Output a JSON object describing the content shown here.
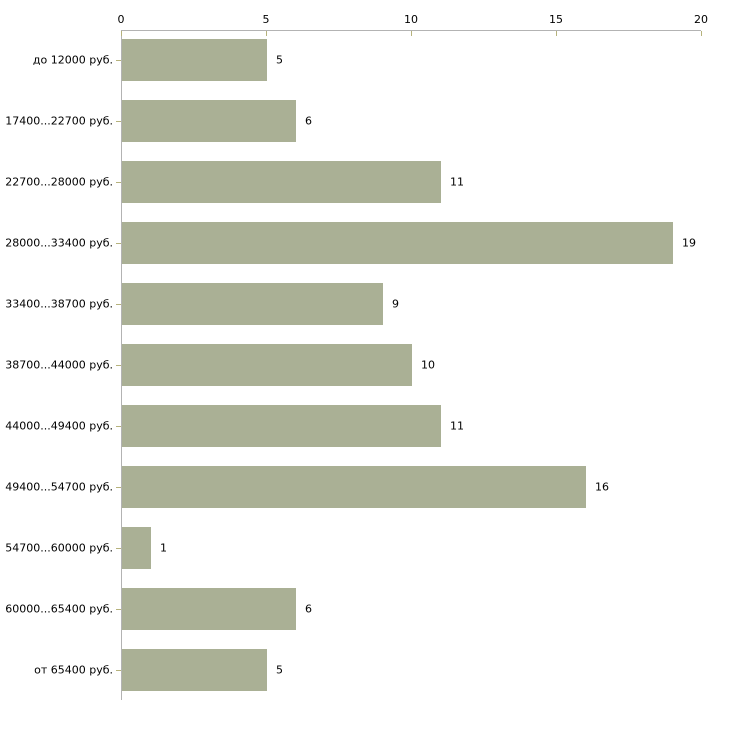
{
  "chart_data": {
    "type": "bar",
    "orientation": "horizontal",
    "title": "",
    "xlabel": "",
    "ylabel": "",
    "categories": [
      "до 12000 руб.",
      "17400...22700 руб.",
      "22700...28000 руб.",
      "28000...33400 руб.",
      "33400...38700 руб.",
      "38700...44000 руб.",
      "44000...49400 руб.",
      "49400...54700 руб.",
      "54700...60000 руб.",
      "60000...65400 руб.",
      "от 65400 руб."
    ],
    "values": [
      5,
      6,
      11,
      19,
      9,
      10,
      11,
      16,
      1,
      6,
      5
    ],
    "x_ticks": [
      0,
      5,
      10,
      15,
      20
    ],
    "xlim": [
      0,
      20
    ],
    "grid": false,
    "legend": false,
    "axis_position": "top",
    "colors": {
      "bar": "#aab095",
      "axis_line": "#b3b3b3",
      "tick_mark": "#b6b27c",
      "text": "#000000",
      "background": "#ffffff"
    }
  }
}
